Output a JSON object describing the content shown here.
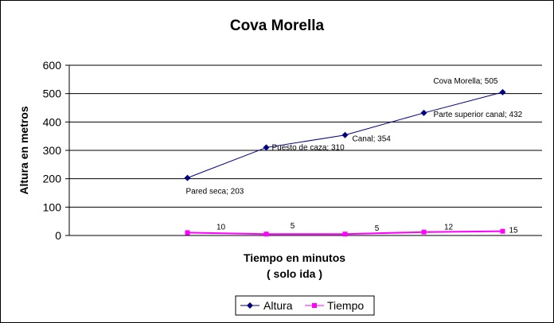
{
  "chart_data": {
    "type": "line",
    "title": "Cova Morella",
    "xlabel_line1": "Tiempo en minutos",
    "xlabel_line2": "( solo ida )",
    "ylabel": "Altura en metros",
    "ylim": [
      0,
      600
    ],
    "yticks": [
      0,
      100,
      200,
      300,
      400,
      500,
      600
    ],
    "grid": true,
    "legend_position": "bottom",
    "series": [
      {
        "name": "Altura",
        "color": "#000080",
        "marker": "diamond",
        "values": [
          203,
          310,
          354,
          432,
          505
        ],
        "labels": [
          "Pared seca; 203",
          "Puesto de caza; 310",
          "Canal; 354",
          "Parte superior canal; 432",
          "Cova Morella; 505"
        ]
      },
      {
        "name": "Tiempo",
        "color": "#FF00FF",
        "marker": "square",
        "values": [
          10,
          5,
          5,
          12,
          15
        ],
        "labels": [
          "10",
          "5",
          "5",
          "12",
          "15"
        ]
      }
    ]
  }
}
